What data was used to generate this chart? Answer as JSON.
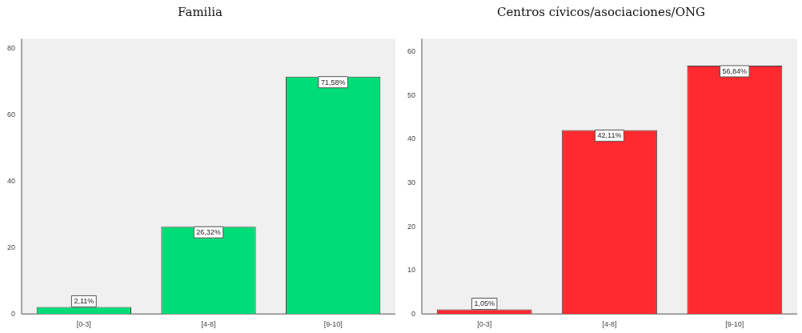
{
  "chart_data": [
    {
      "type": "bar",
      "title": "Familia",
      "categories": [
        "[0-3]",
        "[4-8]",
        "[9-10]"
      ],
      "values": [
        2.11,
        26.32,
        71.58
      ],
      "value_labels": [
        "2,11%",
        "26,32%",
        "71,58%"
      ],
      "color": "#00dd77",
      "ylim": [
        0,
        83
      ],
      "yticks": [
        0,
        20,
        40,
        60,
        80
      ],
      "grid": false,
      "legend": false
    },
    {
      "type": "bar",
      "title": "Centros cívicos/asociaciones/ONG",
      "categories": [
        "[0-3]",
        "[4-8]",
        "[9-10]"
      ],
      "values": [
        1.05,
        42.11,
        56.84
      ],
      "value_labels": [
        "1,05%",
        "42,11%",
        "56,84%"
      ],
      "color": "#ff2a2f",
      "ylim": [
        0,
        63
      ],
      "yticks": [
        0,
        10,
        20,
        30,
        40,
        50,
        60
      ],
      "grid": false,
      "legend": false
    }
  ]
}
